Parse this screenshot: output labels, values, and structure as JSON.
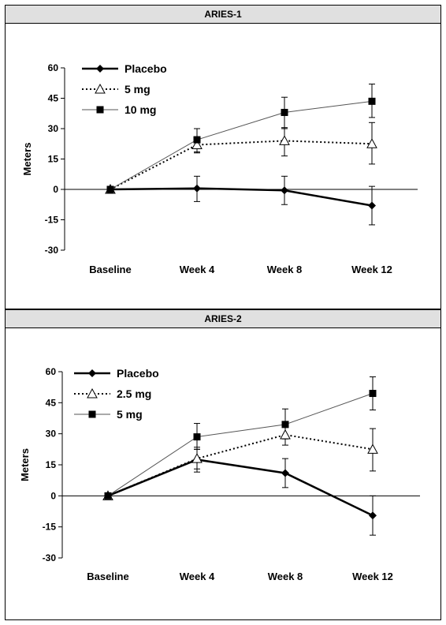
{
  "chart_data": [
    {
      "type": "line",
      "title": "ARIES-1",
      "xlabel": "",
      "ylabel": "Meters",
      "categories": [
        "Baseline",
        "Week 4",
        "Week 8",
        "Week 12"
      ],
      "ylim": [
        -30,
        60
      ],
      "yticks": [
        60,
        45,
        30,
        15,
        0,
        -15,
        -30
      ],
      "legend_position": "top-left",
      "series": [
        {
          "name": "Placebo",
          "marker": "diamond",
          "line": "solid-thick",
          "values": [
            0,
            0.5,
            -0.5,
            -8
          ],
          "err_low": [
            0,
            -6,
            -7.5,
            -17.5
          ],
          "err_high": [
            0,
            6.5,
            6.5,
            1.5
          ]
        },
        {
          "name": "5 mg",
          "marker": "triangle-open",
          "line": "dotted",
          "values": [
            0,
            22,
            24,
            22.5
          ],
          "err_low": [
            0,
            18,
            16.5,
            12.5
          ],
          "err_high": [
            0,
            26,
            30.5,
            33
          ]
        },
        {
          "name": "10 mg",
          "marker": "square",
          "line": "solid-thin",
          "values": [
            0,
            24.5,
            38,
            43.5
          ],
          "err_low": [
            0,
            18.5,
            30,
            35.5
          ],
          "err_high": [
            0,
            30,
            45.5,
            52
          ]
        }
      ]
    },
    {
      "type": "line",
      "title": "ARIES-2",
      "xlabel": "",
      "ylabel": "Meters",
      "categories": [
        "Baseline",
        "Week 4",
        "Week 8",
        "Week 12"
      ],
      "ylim": [
        -30,
        60
      ],
      "yticks": [
        60,
        45,
        30,
        15,
        0,
        -15,
        -30
      ],
      "legend_position": "top-left",
      "series": [
        {
          "name": "Placebo",
          "marker": "diamond",
          "line": "solid-thick",
          "values": [
            0,
            17.5,
            11,
            -9.5
          ],
          "err_low": [
            0,
            11.5,
            4,
            -19
          ],
          "err_high": [
            0,
            23.5,
            18,
            0
          ]
        },
        {
          "name": "2.5 mg",
          "marker": "triangle-open",
          "line": "dotted",
          "values": [
            0,
            18,
            29.5,
            22.5
          ],
          "err_low": [
            0,
            13,
            24.5,
            12
          ],
          "err_high": [
            0,
            22.5,
            34,
            32.5
          ]
        },
        {
          "name": "5 mg",
          "marker": "square",
          "line": "solid-thin",
          "values": [
            0,
            28.5,
            34.5,
            49.5
          ],
          "err_low": [
            0,
            22.5,
            27.5,
            41.5
          ],
          "err_high": [
            0,
            35,
            42,
            57.5
          ]
        }
      ]
    }
  ]
}
